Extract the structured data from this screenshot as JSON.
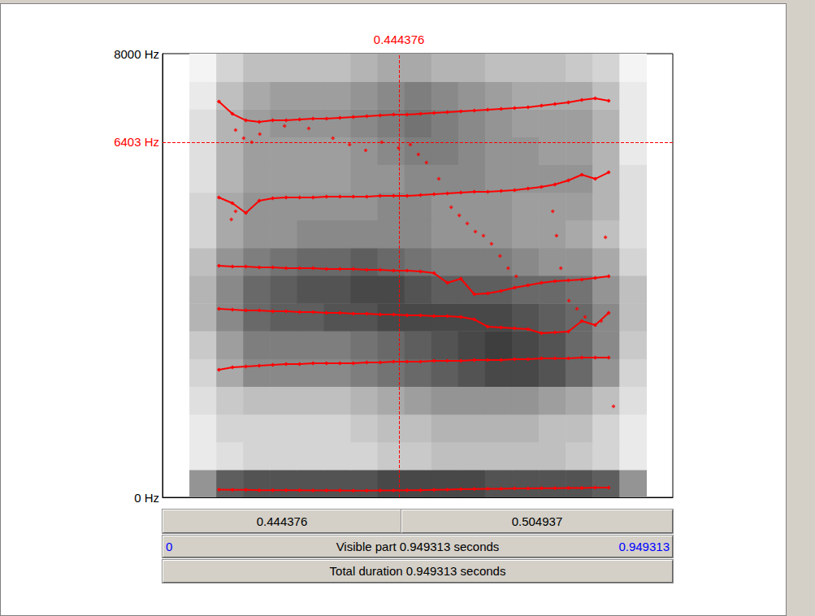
{
  "chart_data": {
    "type": "spectrogram",
    "xlim": [
      0,
      0.949313
    ],
    "ylim": [
      0,
      8000
    ],
    "yticks": [
      {
        "value": 0,
        "label": "0 Hz"
      },
      {
        "value": 8000,
        "label": "8000 Hz"
      }
    ],
    "tick_labels": "y",
    "grid": false,
    "cursor": {
      "time": 0.444376,
      "frequency": 6403,
      "frequency_label": "6403 Hz",
      "color": "#ff0000"
    },
    "spectrogram": {
      "time_edges": [
        0.05,
        0.1,
        0.15,
        0.2,
        0.25,
        0.3,
        0.35,
        0.4,
        0.45,
        0.5,
        0.55,
        0.6,
        0.65,
        0.7,
        0.75,
        0.8,
        0.85,
        0.9
      ],
      "freq_edges": [
        0,
        500,
        1000,
        1500,
        2000,
        2500,
        3000,
        3500,
        4000,
        4500,
        5000,
        5500,
        6000,
        6500,
        7000,
        7500,
        8000
      ],
      "intensity": [
        [
          0.5,
          0.75,
          0.8,
          0.8,
          0.8,
          0.8,
          0.8,
          0.85,
          0.85,
          0.85,
          0.85,
          0.8,
          0.8,
          0.8,
          0.8,
          0.75,
          0.5
        ],
        [
          0.1,
          0.15,
          0.2,
          0.2,
          0.2,
          0.2,
          0.2,
          0.25,
          0.25,
          0.3,
          0.3,
          0.3,
          0.3,
          0.3,
          0.25,
          0.2,
          0.1
        ],
        [
          0.1,
          0.2,
          0.2,
          0.2,
          0.2,
          0.2,
          0.25,
          0.3,
          0.3,
          0.35,
          0.35,
          0.35,
          0.35,
          0.3,
          0.3,
          0.2,
          0.1
        ],
        [
          0.15,
          0.25,
          0.3,
          0.3,
          0.3,
          0.3,
          0.35,
          0.4,
          0.45,
          0.5,
          0.5,
          0.5,
          0.5,
          0.45,
          0.4,
          0.3,
          0.15
        ],
        [
          0.2,
          0.4,
          0.55,
          0.55,
          0.55,
          0.55,
          0.6,
          0.65,
          0.7,
          0.75,
          0.8,
          0.85,
          0.85,
          0.8,
          0.7,
          0.5,
          0.2
        ],
        [
          0.25,
          0.45,
          0.6,
          0.6,
          0.6,
          0.6,
          0.65,
          0.7,
          0.75,
          0.8,
          0.85,
          0.9,
          0.85,
          0.8,
          0.7,
          0.55,
          0.25
        ],
        [
          0.35,
          0.55,
          0.7,
          0.75,
          0.75,
          0.8,
          0.8,
          0.85,
          0.85,
          0.85,
          0.85,
          0.85,
          0.8,
          0.75,
          0.7,
          0.55,
          0.3
        ],
        [
          0.35,
          0.55,
          0.7,
          0.75,
          0.8,
          0.8,
          0.85,
          0.85,
          0.8,
          0.75,
          0.75,
          0.75,
          0.7,
          0.7,
          0.65,
          0.5,
          0.3
        ],
        [
          0.3,
          0.5,
          0.6,
          0.65,
          0.7,
          0.7,
          0.75,
          0.7,
          0.65,
          0.6,
          0.6,
          0.6,
          0.55,
          0.5,
          0.5,
          0.4,
          0.2
        ],
        [
          0.2,
          0.4,
          0.5,
          0.5,
          0.55,
          0.55,
          0.55,
          0.55,
          0.55,
          0.5,
          0.5,
          0.5,
          0.45,
          0.45,
          0.4,
          0.3,
          0.15
        ],
        [
          0.2,
          0.4,
          0.5,
          0.5,
          0.5,
          0.5,
          0.5,
          0.55,
          0.55,
          0.5,
          0.5,
          0.5,
          0.45,
          0.45,
          0.45,
          0.35,
          0.15
        ],
        [
          0.15,
          0.35,
          0.45,
          0.45,
          0.45,
          0.45,
          0.5,
          0.5,
          0.55,
          0.55,
          0.55,
          0.5,
          0.5,
          0.5,
          0.5,
          0.35,
          0.15
        ],
        [
          0.15,
          0.35,
          0.45,
          0.45,
          0.45,
          0.45,
          0.5,
          0.55,
          0.6,
          0.6,
          0.55,
          0.5,
          0.5,
          0.45,
          0.45,
          0.35,
          0.1
        ],
        [
          0.15,
          0.35,
          0.45,
          0.5,
          0.5,
          0.5,
          0.55,
          0.6,
          0.65,
          0.6,
          0.55,
          0.5,
          0.45,
          0.45,
          0.45,
          0.35,
          0.1
        ],
        [
          0.1,
          0.3,
          0.4,
          0.45,
          0.45,
          0.45,
          0.5,
          0.55,
          0.6,
          0.55,
          0.5,
          0.45,
          0.4,
          0.4,
          0.4,
          0.3,
          0.1
        ],
        [
          0.05,
          0.2,
          0.3,
          0.3,
          0.3,
          0.3,
          0.35,
          0.4,
          0.4,
          0.35,
          0.35,
          0.3,
          0.3,
          0.3,
          0.25,
          0.2,
          0.05
        ]
      ]
    },
    "x": [
      0.105,
      0.13,
      0.155,
      0.18,
      0.205,
      0.23,
      0.255,
      0.28,
      0.305,
      0.33,
      0.355,
      0.38,
      0.405,
      0.43,
      0.455,
      0.48,
      0.505,
      0.53,
      0.555,
      0.58,
      0.605,
      0.63,
      0.655,
      0.68,
      0.705,
      0.73,
      0.755,
      0.78,
      0.805,
      0.83
    ],
    "series": [
      {
        "type": "line",
        "color": "#ff0000",
        "marker": "diamond",
        "values": [
          140,
          135,
          135,
          130,
          130,
          130,
          130,
          125,
          125,
          125,
          120,
          120,
          125,
          125,
          130,
          130,
          135,
          140,
          145,
          150,
          155,
          155,
          160,
          160,
          165,
          165,
          170,
          170,
          175,
          175
        ]
      },
      {
        "type": "line",
        "color": "#ff0000",
        "marker": "diamond",
        "values": [
          2300,
          2344,
          2359,
          2373,
          2388,
          2403,
          2403,
          2417,
          2417,
          2417,
          2417,
          2432,
          2432,
          2446,
          2446,
          2446,
          2461,
          2461,
          2461,
          2476,
          2476,
          2476,
          2490,
          2490,
          2505,
          2505,
          2505,
          2520,
          2520,
          2520
        ]
      },
      {
        "type": "line",
        "color": "#ff0000",
        "marker": "diamond",
        "values": [
          3399,
          3384,
          3370,
          3370,
          3355,
          3355,
          3340,
          3340,
          3326,
          3326,
          3311,
          3311,
          3296,
          3296,
          3282,
          3282,
          3267,
          3267,
          3252,
          3208,
          3077,
          3062,
          3047,
          3033,
          2960,
          2975,
          2989,
          3179,
          3106,
          3326
        ]
      },
      {
        "type": "line",
        "color": "#ff0000",
        "marker": "diamond",
        "values": [
          4175,
          4160,
          4160,
          4146,
          4146,
          4131,
          4131,
          4131,
          4117,
          4117,
          4117,
          4102,
          4102,
          4087,
          4087,
          4073,
          4043,
          3868,
          3941,
          3663,
          3677,
          3721,
          3780,
          3824,
          3868,
          3897,
          3912,
          3926,
          3956,
          3985
        ]
      },
      {
        "type": "line",
        "color": "#ff0000",
        "marker": "diamond",
        "values": [
          5406,
          5304,
          5128,
          5348,
          5392,
          5406,
          5406,
          5406,
          5421,
          5421,
          5421,
          5421,
          5435,
          5435,
          5435,
          5450,
          5465,
          5479,
          5494,
          5509,
          5509,
          5523,
          5538,
          5567,
          5596,
          5640,
          5714,
          5817,
          5743,
          5860
        ]
      },
      {
        "type": "line",
        "color": "#ff0000",
        "marker": "diamond",
        "values": [
          7135,
          6915,
          6798,
          6768,
          6798,
          6798,
          6812,
          6827,
          6827,
          6842,
          6856,
          6871,
          6886,
          6900,
          6900,
          6915,
          6929,
          6944,
          6959,
          6973,
          6988,
          7003,
          7017,
          7032,
          7061,
          7091,
          7120,
          7164,
          7193,
          7149
        ]
      },
      {
        "type": "scatter",
        "color": "#ff0000",
        "marker": "diamond",
        "x": [
          0.136,
          0.151,
          0.166,
          0.181,
          0.227,
          0.272,
          0.317,
          0.348,
          0.378,
          0.408,
          0.439,
          0.461,
          0.476,
          0.491,
          0.514,
          0.537,
          0.552,
          0.567,
          0.582,
          0.597,
          0.612,
          0.628,
          0.643,
          0.658,
          0.726,
          0.733,
          0.741,
          0.756,
          0.771,
          0.786,
          0.816,
          0.824,
          0.839,
          0.128,
          0.136
        ],
        "values": [
          6622,
          6475,
          6402,
          6549,
          6695,
          6651,
          6475,
          6358,
          6256,
          6402,
          6300,
          6358,
          6182,
          6036,
          5743,
          5230,
          5084,
          4937,
          4791,
          4717,
          4571,
          4351,
          4131,
          3985,
          5157,
          4717,
          4131,
          3545,
          3399,
          3252,
          3179,
          4688,
          1641,
          5010,
          5157
        ]
      }
    ]
  },
  "window": {
    "cursor_panes": [
      "0.444376",
      "0.504937"
    ],
    "visible": {
      "start": "0",
      "text": "Visible part 0.949313 seconds",
      "end": "0.949313"
    },
    "total": "Total duration 0.949313 seconds"
  }
}
